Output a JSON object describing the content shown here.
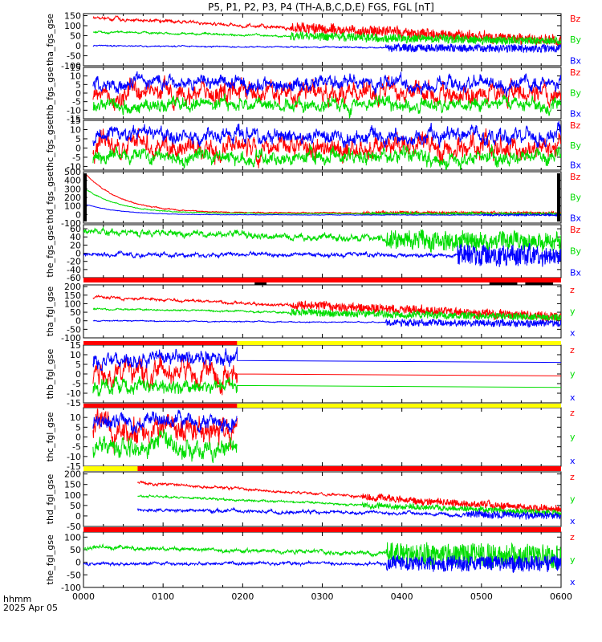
{
  "title": "P5, P1, P2, P3, P4 (TH-A,B,C,D,E) FGS, FGL [nT]",
  "colors": {
    "red": "#ff0000",
    "green": "#00dd00",
    "blue": "#0000ff",
    "black": "#000000",
    "yellow": "#ffff00",
    "bg": "#ffffff"
  },
  "footer": {
    "label1": "hhmm",
    "label2": "2025 Apr 05"
  },
  "chart_data": {
    "type": "line",
    "x_ticks": [
      "0000",
      "0100",
      "0200",
      "0300",
      "0400",
      "0500",
      "0600"
    ],
    "x_range_hours": [
      0,
      6
    ],
    "panels": [
      {
        "ylabel": "tha_fgs_gse",
        "yticks": [
          "150",
          "100",
          "50",
          "0",
          "-50",
          "-100"
        ],
        "ylim": [
          -100,
          160
        ],
        "legend": [
          "Bz",
          "By",
          "Bx"
        ],
        "start": 0.12,
        "end": 6,
        "series": [
          {
            "label": "Bz",
            "color": "red",
            "start_val": 140,
            "end_val": 25,
            "noise": 8,
            "burst_from": 2.6,
            "burst_amp": 25
          },
          {
            "label": "By",
            "color": "green",
            "start_val": 70,
            "end_val": 20,
            "noise": 5,
            "burst_from": 2.6,
            "burst_amp": 20
          },
          {
            "label": "Bx",
            "color": "blue",
            "start_val": 0,
            "end_val": -15,
            "noise": 3,
            "burst_from": 3.8,
            "burst_amp": 20
          }
        ]
      },
      {
        "ylabel": "thb_fgs_gse",
        "yticks": [
          "15",
          "10",
          "5",
          "0",
          "-5",
          "-10",
          "-15"
        ],
        "ylim": [
          -15,
          15
        ],
        "legend": [
          "Bz",
          "By",
          "Bx"
        ],
        "start": 0.12,
        "end": 6,
        "series": [
          {
            "label": "Bz",
            "color": "red",
            "start_val": 0,
            "end_val": 0,
            "noise": 6,
            "burst_from": 0,
            "burst_amp": 0
          },
          {
            "label": "By",
            "color": "green",
            "start_val": -7,
            "end_val": -7,
            "noise": 4,
            "burst_from": 0,
            "burst_amp": 0
          },
          {
            "label": "Bx",
            "color": "blue",
            "start_val": 6,
            "end_val": 5,
            "noise": 4,
            "burst_from": 0,
            "burst_amp": 0
          }
        ]
      },
      {
        "ylabel": "thc_fgs_gse",
        "yticks": [
          "15",
          "10",
          "5",
          "0",
          "-5",
          "-10"
        ],
        "ylim": [
          -12,
          15
        ],
        "legend": [
          "Bz",
          "By",
          "Bx"
        ],
        "start": 0.12,
        "end": 6,
        "series": [
          {
            "label": "Bz",
            "color": "red",
            "start_val": 2,
            "end_val": 1,
            "noise": 6,
            "burst_from": 0,
            "burst_amp": 0
          },
          {
            "label": "By",
            "color": "green",
            "start_val": -5,
            "end_val": -5,
            "noise": 4,
            "burst_from": 0,
            "burst_amp": 0
          },
          {
            "label": "Bx",
            "color": "blue",
            "start_val": 7,
            "end_val": 6,
            "noise": 4,
            "burst_from": 0,
            "burst_amp": 0
          }
        ]
      },
      {
        "ylabel": "thd_fgs_gse",
        "yticks": [
          "500",
          "400",
          "300",
          "200",
          "100",
          "0",
          "-100"
        ],
        "ylim": [
          -100,
          500
        ],
        "legend": [
          "Bz",
          "By",
          "Bx"
        ],
        "start": 0.02,
        "end": 6,
        "decay": 0.45,
        "series": [
          {
            "label": "Bz",
            "color": "red",
            "start_val": 480,
            "end_val": 20,
            "noise": 6,
            "burst_from": 3.5,
            "burst_amp": 15
          },
          {
            "label": "By",
            "color": "green",
            "start_val": 300,
            "end_val": 10,
            "noise": 5,
            "burst_from": 3.5,
            "burst_amp": 12
          },
          {
            "label": "Bx",
            "color": "blue",
            "start_val": 120,
            "end_val": -5,
            "noise": 3,
            "burst_from": 5,
            "burst_amp": 10
          }
        ]
      },
      {
        "ylabel": "the_fgs_gse",
        "yticks": [
          "60",
          "40",
          "20",
          "0",
          "-20",
          "-40",
          "-60"
        ],
        "ylim": [
          -60,
          70
        ],
        "legend": [
          "Bz",
          "By",
          "Bx"
        ],
        "start": 0,
        "end": 6,
        "series": [
          {
            "label": "By",
            "color": "green",
            "start_val": 55,
            "end_val": 25,
            "noise": 8,
            "burst_from": 3.8,
            "burst_amp": 20
          },
          {
            "label": "Bx",
            "color": "blue",
            "start_val": -3,
            "end_val": -5,
            "noise": 5,
            "burst_from": 4.7,
            "burst_amp": 25
          }
        ]
      },
      {
        "ylabel": "tha_fgl_gse",
        "yticks": [
          "200",
          "150",
          "100",
          "50",
          "0",
          "-50",
          "-100"
        ],
        "ylim": [
          -100,
          210
        ],
        "legend": [
          "z",
          "y",
          "x"
        ],
        "start": 0.12,
        "end": 6,
        "series": [
          {
            "label": "z",
            "color": "red",
            "start_val": 140,
            "end_val": 25,
            "noise": 8,
            "burst_from": 2.6,
            "burst_amp": 25
          },
          {
            "label": "y",
            "color": "green",
            "start_val": 70,
            "end_val": 20,
            "noise": 5,
            "burst_from": 2.6,
            "burst_amp": 20
          },
          {
            "label": "x",
            "color": "blue",
            "start_val": 0,
            "end_val": -15,
            "noise": 3,
            "burst_from": 3.8,
            "burst_amp": 20
          }
        ]
      },
      {
        "ylabel": "thb_fgl_gse",
        "yticks": [
          "15",
          "10",
          "5",
          "0",
          "-5",
          "-10",
          "-15"
        ],
        "ylim": [
          -15,
          15
        ],
        "legend": [
          "z",
          "y",
          "x"
        ],
        "start": 0.12,
        "end": 6,
        "data_end": 1.93,
        "series": [
          {
            "label": "z",
            "color": "red",
            "start_val": 0,
            "end_val": 0,
            "noise": 6,
            "burst_from": 0,
            "burst_amp": 0,
            "tail_val": 0
          },
          {
            "label": "y",
            "color": "green",
            "start_val": -7,
            "end_val": -7,
            "noise": 4,
            "burst_from": 0,
            "burst_amp": 0,
            "tail_val": -6
          },
          {
            "label": "x",
            "color": "blue",
            "start_val": 8,
            "end_val": 8,
            "noise": 4,
            "burst_from": 0,
            "burst_amp": 0,
            "tail_val": 7
          }
        ]
      },
      {
        "ylabel": "thc_fgl_gse",
        "yticks": [
          "10",
          "5",
          "0",
          "-5",
          "-10",
          "-15"
        ],
        "ylim": [
          -15,
          15
        ],
        "legend": [
          "z",
          "y",
          "x"
        ],
        "start": 0.12,
        "end": 1.93,
        "series": [
          {
            "label": "z",
            "color": "red",
            "start_val": 4,
            "end_val": 2,
            "noise": 7,
            "burst_from": 0,
            "burst_amp": 0
          },
          {
            "label": "y",
            "color": "green",
            "start_val": -5,
            "end_val": -6,
            "noise": 5,
            "burst_from": 0,
            "burst_amp": 0
          },
          {
            "label": "x",
            "color": "blue",
            "start_val": 8,
            "end_val": 7,
            "noise": 4,
            "burst_from": 0,
            "burst_amp": 0
          }
        ]
      },
      {
        "ylabel": "thd_fgl_gse",
        "yticks": [
          "200",
          "150",
          "100",
          "50",
          "0",
          "-50"
        ],
        "ylim": [
          -50,
          210
        ],
        "legend": [
          "z",
          "y",
          "x"
        ],
        "start": 0.68,
        "end": 6,
        "series": [
          {
            "label": "z",
            "color": "red",
            "start_val": 160,
            "end_val": 30,
            "noise": 6,
            "burst_from": 3.5,
            "burst_amp": 15
          },
          {
            "label": "y",
            "color": "green",
            "start_val": 95,
            "end_val": 15,
            "noise": 5,
            "burst_from": 3.5,
            "burst_amp": 12
          },
          {
            "label": "x",
            "color": "blue",
            "start_val": 30,
            "end_val": 0,
            "noise": 8,
            "burst_from": 4.8,
            "burst_amp": 15
          }
        ]
      },
      {
        "ylabel": "the_fgl_gse",
        "yticks": [
          "100",
          "50",
          "0",
          "-50",
          "-100"
        ],
        "ylim": [
          -100,
          120
        ],
        "legend": [
          "z",
          "y",
          "x"
        ],
        "start": 0,
        "end": 6,
        "series": [
          {
            "label": "y",
            "color": "green",
            "start_val": 60,
            "end_val": 20,
            "noise": 8,
            "burst_from": 3.8,
            "burst_amp": 45
          },
          {
            "label": "x",
            "color": "blue",
            "start_val": -5,
            "end_val": -5,
            "noise": 6,
            "burst_from": 3.8,
            "burst_amp": 30
          }
        ]
      }
    ],
    "mode_bars": [
      {
        "segments": [
          {
            "from": 0,
            "to": 6,
            "color": "red"
          }
        ],
        "marks": [
          [
            2.15,
            2.3
          ],
          [
            5.1,
            5.45
          ],
          [
            5.55,
            5.9
          ]
        ]
      },
      {
        "segments": [
          {
            "from": 0,
            "to": 1.93,
            "color": "red"
          },
          {
            "from": 1.93,
            "to": 6,
            "color": "yellow"
          }
        ],
        "marks": []
      },
      {
        "segments": [
          {
            "from": 0,
            "to": 1.93,
            "color": "red"
          },
          {
            "from": 1.93,
            "to": 6,
            "color": "yellow"
          }
        ],
        "marks": []
      },
      {
        "segments": [
          {
            "from": 0,
            "to": 0.68,
            "color": "yellow"
          },
          {
            "from": 0.68,
            "to": 6,
            "color": "red"
          }
        ],
        "marks": []
      },
      {
        "segments": [
          {
            "from": 0,
            "to": 6,
            "color": "red"
          }
        ],
        "marks": []
      }
    ]
  }
}
